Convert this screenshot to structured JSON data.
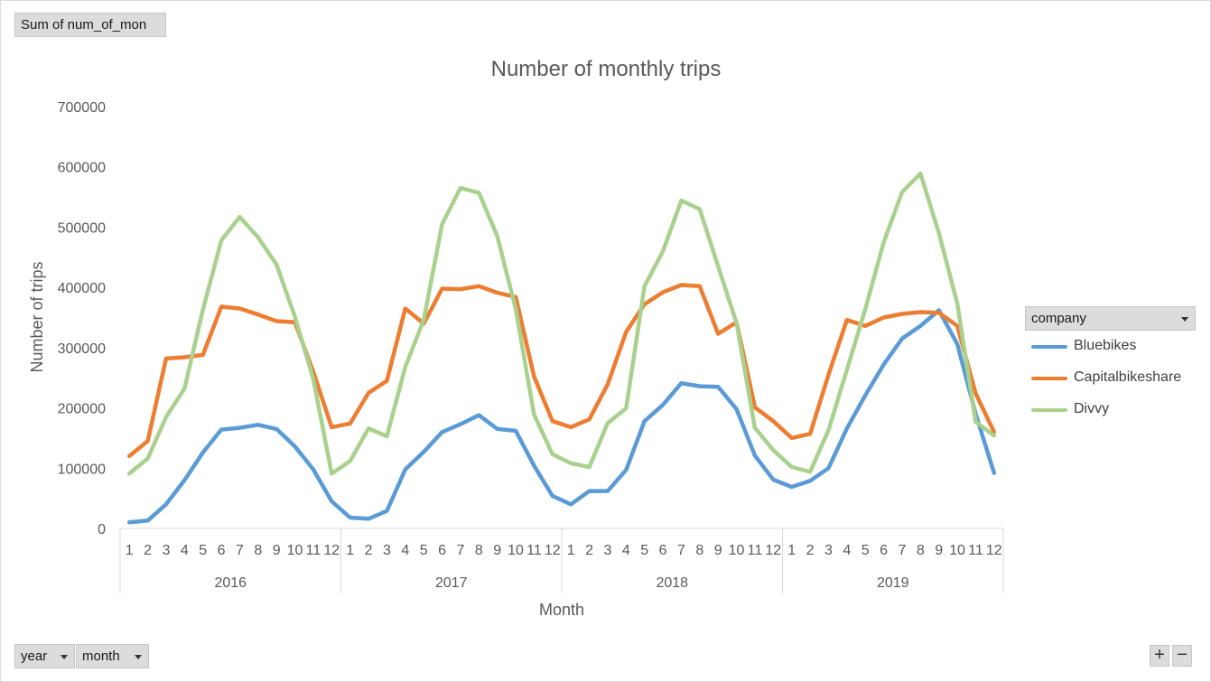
{
  "pivot": {
    "values_field": "Sum of num_of_mon",
    "legend_field": "company",
    "axis_fields": [
      "year",
      "month"
    ]
  },
  "chart_data": {
    "type": "line",
    "title": "Number of monthly trips",
    "xlabel": "Month",
    "ylabel": "Number of trips",
    "ylim": [
      0,
      700000
    ],
    "yticks": [
      0,
      100000,
      200000,
      300000,
      400000,
      500000,
      600000,
      700000
    ],
    "grid": false,
    "legend_position": "right",
    "years": [
      "2016",
      "2017",
      "2018",
      "2019"
    ],
    "months": [
      "1",
      "2",
      "3",
      "4",
      "5",
      "6",
      "7",
      "8",
      "9",
      "10",
      "11",
      "12"
    ],
    "series": [
      {
        "name": "Bluebikes",
        "color": "#5b9bd5",
        "values": [
          10000,
          13000,
          40000,
          80000,
          126000,
          164000,
          167000,
          172000,
          165000,
          136000,
          98000,
          45000,
          18000,
          16000,
          29000,
          98000,
          127000,
          160000,
          173000,
          188000,
          165000,
          162000,
          104000,
          54000,
          40000,
          62000,
          62000,
          97000,
          178000,
          205000,
          241000,
          236000,
          235000,
          198000,
          121000,
          81000,
          69000,
          79000,
          100000,
          166000,
          221000,
          272000,
          315000,
          336000,
          362000,
          306000,
          190000,
          92000
        ]
      },
      {
        "name": "Capitalbikeshare",
        "color": "#ed7d31",
        "values": [
          120000,
          145000,
          282000,
          284000,
          288000,
          368000,
          365000,
          355000,
          344000,
          342000,
          260000,
          168000,
          174000,
          225000,
          245000,
          365000,
          340000,
          398000,
          397000,
          402000,
          391000,
          384000,
          252000,
          178000,
          168000,
          181000,
          239000,
          326000,
          372000,
          392000,
          404000,
          402000,
          323000,
          342000,
          201000,
          178000,
          150000,
          157000,
          255000,
          346000,
          336000,
          350000,
          356000,
          359000,
          358000,
          336000,
          224000,
          160000
        ]
      },
      {
        "name": "Divvy",
        "color": "#a9d18e",
        "values": [
          91000,
          116000,
          185000,
          232000,
          363000,
          478000,
          517000,
          483000,
          438000,
          351000,
          248000,
          91000,
          112000,
          166000,
          153000,
          268000,
          346000,
          505000,
          565000,
          557000,
          485000,
          364000,
          189000,
          123000,
          108000,
          102000,
          175000,
          199000,
          402000,
          460000,
          544000,
          530000,
          435000,
          341000,
          167000,
          130000,
          102000,
          94000,
          163000,
          263000,
          364000,
          475000,
          558000,
          589000,
          490000,
          373000,
          177000,
          154000
        ]
      }
    ]
  }
}
